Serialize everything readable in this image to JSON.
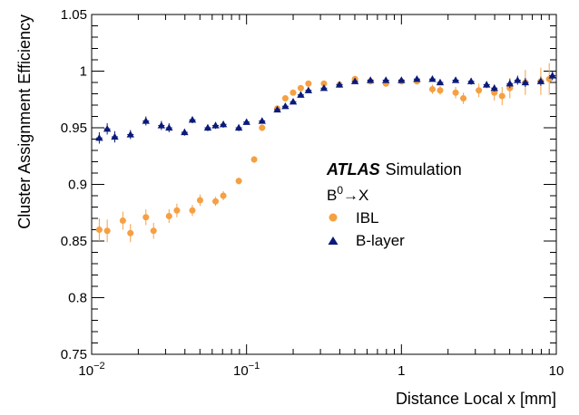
{
  "chart_data": {
    "type": "scatter",
    "xlabel": "Distance Local x [mm]",
    "ylabel": "Cluster Assignment Efficiency",
    "xscale": "log",
    "xlim": [
      0.01,
      10
    ],
    "ylim": [
      0.75,
      1.05
    ],
    "x_ticks": [
      {
        "value": 0.01,
        "base": "10",
        "exp": "−2"
      },
      {
        "value": 0.1,
        "base": "10",
        "exp": "−1"
      },
      {
        "value": 1,
        "base": "1",
        "exp": ""
      },
      {
        "value": 10,
        "base": "10",
        "exp": ""
      }
    ],
    "y_ticks": [
      {
        "value": 0.75,
        "label": "0.75"
      },
      {
        "value": 0.8,
        "label": "0.8"
      },
      {
        "value": 0.85,
        "label": "0.85"
      },
      {
        "value": 0.9,
        "label": "0.9"
      },
      {
        "value": 0.95,
        "label": "0.95"
      },
      {
        "value": 1.0,
        "label": "1"
      },
      {
        "value": 1.05,
        "label": "1.05"
      }
    ],
    "annotation": {
      "experiment": "ATLAS",
      "status": "Simulation",
      "process_main": "B",
      "process_sup": "0",
      "process_rest": "→X"
    },
    "legend_position": "center-right",
    "series": [
      {
        "name": "IBL",
        "marker": "circle",
        "color": "#F5A042",
        "points": [
          {
            "x": 0.0112,
            "y": 0.86,
            "yerr": 0.01
          },
          {
            "x": 0.0126,
            "y": 0.859,
            "yerr": 0.01
          },
          {
            "x": 0.0159,
            "y": 0.868,
            "yerr": 0.008
          },
          {
            "x": 0.0178,
            "y": 0.857,
            "yerr": 0.008
          },
          {
            "x": 0.0224,
            "y": 0.871,
            "yerr": 0.007
          },
          {
            "x": 0.0251,
            "y": 0.859,
            "yerr": 0.007
          },
          {
            "x": 0.0316,
            "y": 0.872,
            "yerr": 0.006
          },
          {
            "x": 0.0355,
            "y": 0.877,
            "yerr": 0.006
          },
          {
            "x": 0.0447,
            "y": 0.877,
            "yerr": 0.005
          },
          {
            "x": 0.0501,
            "y": 0.886,
            "yerr": 0.005
          },
          {
            "x": 0.0631,
            "y": 0.885,
            "yerr": 0.004
          },
          {
            "x": 0.0708,
            "y": 0.89,
            "yerr": 0.004
          },
          {
            "x": 0.0891,
            "y": 0.903,
            "yerr": 0.003
          },
          {
            "x": 0.112,
            "y": 0.922,
            "yerr": 0.003
          },
          {
            "x": 0.126,
            "y": 0.95,
            "yerr": 0.003
          },
          {
            "x": 0.158,
            "y": 0.967,
            "yerr": 0.002
          },
          {
            "x": 0.178,
            "y": 0.976,
            "yerr": 0.002
          },
          {
            "x": 0.2,
            "y": 0.981,
            "yerr": 0.002
          },
          {
            "x": 0.224,
            "y": 0.985,
            "yerr": 0.002
          },
          {
            "x": 0.251,
            "y": 0.989,
            "yerr": 0.002
          },
          {
            "x": 0.316,
            "y": 0.989,
            "yerr": 0.002
          },
          {
            "x": 0.398,
            "y": 0.988,
            "yerr": 0.002
          },
          {
            "x": 0.501,
            "y": 0.993,
            "yerr": 0.002
          },
          {
            "x": 0.631,
            "y": 0.991,
            "yerr": 0.002
          },
          {
            "x": 0.794,
            "y": 0.989,
            "yerr": 0.002
          },
          {
            "x": 1.0,
            "y": 0.991,
            "yerr": 0.002
          },
          {
            "x": 1.259,
            "y": 0.991,
            "yerr": 0.002
          },
          {
            "x": 1.585,
            "y": 0.984,
            "yerr": 0.004
          },
          {
            "x": 1.778,
            "y": 0.983,
            "yerr": 0.004
          },
          {
            "x": 2.239,
            "y": 0.981,
            "yerr": 0.005
          },
          {
            "x": 2.512,
            "y": 0.976,
            "yerr": 0.005
          },
          {
            "x": 3.162,
            "y": 0.983,
            "yerr": 0.006
          },
          {
            "x": 3.981,
            "y": 0.981,
            "yerr": 0.007
          },
          {
            "x": 4.467,
            "y": 0.978,
            "yerr": 0.008
          },
          {
            "x": 5.012,
            "y": 0.985,
            "yerr": 0.009
          },
          {
            "x": 6.31,
            "y": 0.99,
            "yerr": 0.011
          },
          {
            "x": 7.943,
            "y": 0.991,
            "yerr": 0.012
          },
          {
            "x": 9.0,
            "y": 0.993,
            "yerr": 0.014
          }
        ]
      },
      {
        "name": "B-layer",
        "marker": "triangle",
        "color": "#0A1A7A",
        "points": [
          {
            "x": 0.0112,
            "y": 0.941,
            "yerr": 0.005
          },
          {
            "x": 0.0126,
            "y": 0.949,
            "yerr": 0.005
          },
          {
            "x": 0.0141,
            "y": 0.942,
            "yerr": 0.005
          },
          {
            "x": 0.0178,
            "y": 0.944,
            "yerr": 0.004
          },
          {
            "x": 0.0224,
            "y": 0.956,
            "yerr": 0.004
          },
          {
            "x": 0.0282,
            "y": 0.952,
            "yerr": 0.004
          },
          {
            "x": 0.0316,
            "y": 0.95,
            "yerr": 0.004
          },
          {
            "x": 0.0398,
            "y": 0.946,
            "yerr": 0.003
          },
          {
            "x": 0.0447,
            "y": 0.957,
            "yerr": 0.003
          },
          {
            "x": 0.0562,
            "y": 0.95,
            "yerr": 0.003
          },
          {
            "x": 0.0631,
            "y": 0.952,
            "yerr": 0.003
          },
          {
            "x": 0.0708,
            "y": 0.953,
            "yerr": 0.003
          },
          {
            "x": 0.0891,
            "y": 0.95,
            "yerr": 0.003
          },
          {
            "x": 0.1,
            "y": 0.955,
            "yerr": 0.002
          },
          {
            "x": 0.126,
            "y": 0.956,
            "yerr": 0.002
          },
          {
            "x": 0.158,
            "y": 0.966,
            "yerr": 0.002
          },
          {
            "x": 0.178,
            "y": 0.969,
            "yerr": 0.002
          },
          {
            "x": 0.2,
            "y": 0.973,
            "yerr": 0.002
          },
          {
            "x": 0.224,
            "y": 0.979,
            "yerr": 0.002
          },
          {
            "x": 0.251,
            "y": 0.983,
            "yerr": 0.002
          },
          {
            "x": 0.316,
            "y": 0.985,
            "yerr": 0.002
          },
          {
            "x": 0.398,
            "y": 0.988,
            "yerr": 0.002
          },
          {
            "x": 0.501,
            "y": 0.991,
            "yerr": 0.002
          },
          {
            "x": 0.631,
            "y": 0.992,
            "yerr": 0.002
          },
          {
            "x": 0.794,
            "y": 0.992,
            "yerr": 0.002
          },
          {
            "x": 1.0,
            "y": 0.992,
            "yerr": 0.002
          },
          {
            "x": 1.259,
            "y": 0.993,
            "yerr": 0.002
          },
          {
            "x": 1.585,
            "y": 0.993,
            "yerr": 0.002
          },
          {
            "x": 1.778,
            "y": 0.99,
            "yerr": 0.002
          },
          {
            "x": 2.239,
            "y": 0.992,
            "yerr": 0.002
          },
          {
            "x": 2.818,
            "y": 0.991,
            "yerr": 0.003
          },
          {
            "x": 3.548,
            "y": 0.988,
            "yerr": 0.003
          },
          {
            "x": 3.981,
            "y": 0.985,
            "yerr": 0.003
          },
          {
            "x": 5.012,
            "y": 0.989,
            "yerr": 0.004
          },
          {
            "x": 5.623,
            "y": 0.992,
            "yerr": 0.004
          },
          {
            "x": 6.31,
            "y": 0.99,
            "yerr": 0.004
          },
          {
            "x": 7.943,
            "y": 0.991,
            "yerr": 0.004
          },
          {
            "x": 9.441,
            "y": 0.996,
            "yerr": 0.004
          }
        ]
      }
    ]
  }
}
